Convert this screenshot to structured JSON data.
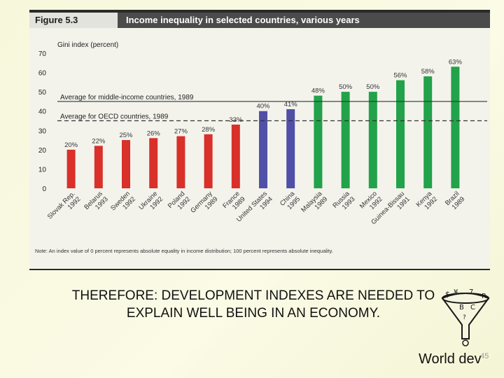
{
  "figure": {
    "label": "Figure 5.3",
    "title": "Income inequality in selected countries, various years",
    "note": "Note: An index value of 0 percent represents absolute equality in income distribution; 100 percent represents absolute inequality."
  },
  "chart_data": {
    "type": "bar",
    "ylabel": "Gini index (percent)",
    "ylim": [
      0,
      70
    ],
    "yticks": [
      0,
      10,
      20,
      30,
      40,
      50,
      60,
      70
    ],
    "categories": [
      "Slovak Rep. 1992",
      "Belarus 1993",
      "Sweden 1992",
      "Ukraine 1992",
      "Poland 1992",
      "Germany 1989",
      "France 1989",
      "United States 1994",
      "China 1995",
      "Malaysia 1989",
      "Russia 1993",
      "Mexico 1992",
      "Guinea-Bissau 1991",
      "Kenya 1992",
      "Brazil 1989"
    ],
    "values": [
      20,
      22,
      25,
      26,
      27,
      28,
      33,
      40,
      41,
      48,
      50,
      50,
      56,
      58,
      63
    ],
    "value_labels": [
      "20%",
      "22%",
      "25%",
      "26%",
      "27%",
      "28%",
      "33%",
      "40%",
      "41%",
      "48%",
      "50%",
      "50%",
      "56%",
      "58%",
      "63%"
    ],
    "colors": [
      "#d9302a",
      "#d9302a",
      "#d9302a",
      "#d9302a",
      "#d9302a",
      "#d9302a",
      "#d9302a",
      "#5050a8",
      "#5050a8",
      "#22a24a",
      "#22a24a",
      "#22a24a",
      "#22a24a",
      "#22a24a",
      "#22a24a"
    ],
    "reference_lines": [
      {
        "label": "Average for middle-income countries, 1989",
        "value": 45,
        "style": "solid"
      },
      {
        "label": "Average for OECD countries, 1989",
        "value": 35,
        "style": "dashed"
      }
    ]
  },
  "slide": {
    "caption": "THEREFORE: DEVELOPMENT INDEXES ARE NEEDED TO EXPLAIN WELL BEING IN AN ECONOMY.",
    "footer": "World dev",
    "page_number": "45"
  }
}
